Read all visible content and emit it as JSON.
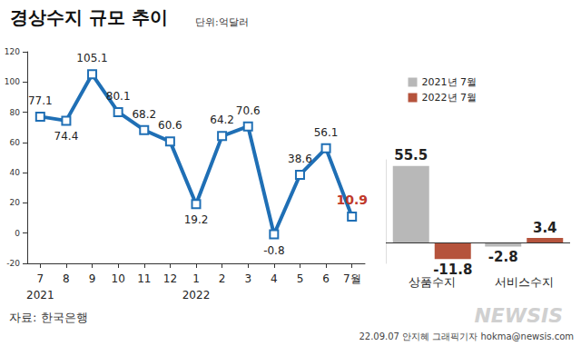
{
  "chart_data": [
    {
      "type": "line",
      "title": "경상수지 규모 추이",
      "subtitle": "단위:억달러",
      "annotations": [
        "자료: 한국은행",
        "22.09.07 안지혜 그래픽기자 hokma@newsis.com",
        "NEWSIS"
      ],
      "categories": [
        "7\n2021",
        "8",
        "9",
        "10",
        "11",
        "12",
        "1\n2022",
        "2",
        "3",
        "4",
        "5",
        "6",
        "7월"
      ],
      "values": [
        77.1,
        74.4,
        105.1,
        80.1,
        68.2,
        60.6,
        19.2,
        64.2,
        70.6,
        -0.8,
        38.6,
        56.1,
        10.9
      ],
      "color": "#1f6fb5",
      "marker": "square",
      "line_style": "solid",
      "ylim": [
        -20,
        120
      ],
      "yticks": [
        -20,
        0,
        20,
        40,
        60,
        80,
        100,
        120
      ],
      "grid": false,
      "data_labels": true
    },
    {
      "type": "bar",
      "categories": [
        "상품수지",
        "서비스수지"
      ],
      "series": [
        {
          "name": "2021년 7월",
          "color": "#b8b8b8",
          "values": [
            55.5,
            -2.8
          ]
        },
        {
          "name": "2022년 7월",
          "color": "#b5533c",
          "values": [
            -11.8,
            3.4
          ]
        }
      ],
      "ylim": [
        -15,
        60
      ],
      "yticks": [
        0
      ],
      "tick_labels": false,
      "legend": "top-right",
      "data_labels": true
    }
  ]
}
